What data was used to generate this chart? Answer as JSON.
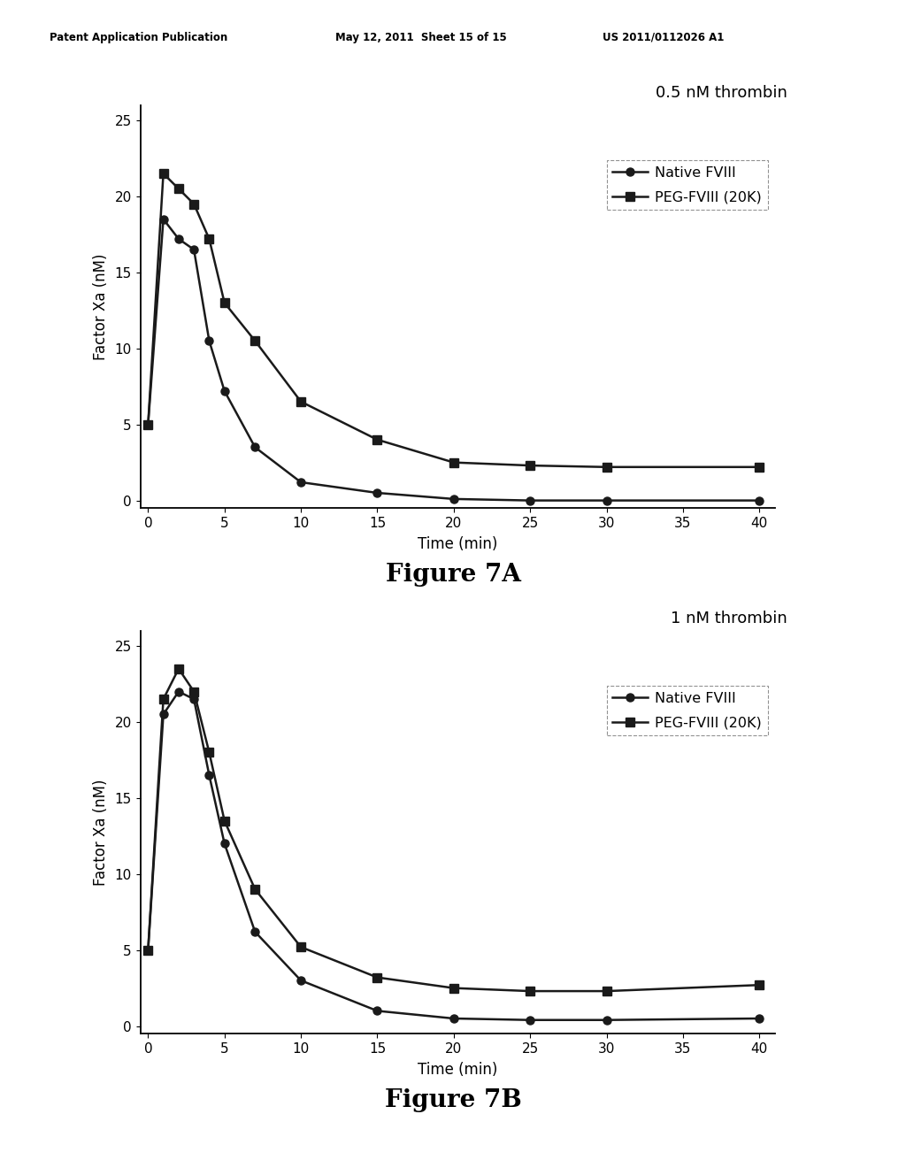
{
  "header_left": "Patent Application Publication",
  "header_mid": "May 12, 2011  Sheet 15 of 15",
  "header_right": "US 2011/0112026 A1",
  "fig7a": {
    "title": "0.5 nM thrombin",
    "xlabel": "Time (min)",
    "ylabel": "Factor Xa (nM)",
    "xlim": [
      -0.5,
      41
    ],
    "ylim": [
      -0.5,
      26
    ],
    "xticks": [
      0,
      5,
      10,
      15,
      20,
      25,
      30,
      35,
      40
    ],
    "yticks": [
      0,
      5,
      10,
      15,
      20,
      25
    ],
    "native_x": [
      0,
      1,
      2,
      3,
      4,
      5,
      7,
      10,
      15,
      20,
      25,
      30,
      40
    ],
    "native_y": [
      5.0,
      18.5,
      17.2,
      16.5,
      10.5,
      7.2,
      3.5,
      1.2,
      0.5,
      0.1,
      0.0,
      0.0,
      0.0
    ],
    "peg_x": [
      0,
      1,
      2,
      3,
      4,
      5,
      7,
      10,
      15,
      20,
      25,
      30,
      40
    ],
    "peg_y": [
      5.0,
      21.5,
      20.5,
      19.5,
      17.2,
      13.0,
      10.5,
      6.5,
      4.0,
      2.5,
      2.3,
      2.2,
      2.2
    ],
    "figure_label": "Figure 7A"
  },
  "fig7b": {
    "title": "1 nM thrombin",
    "xlabel": "Time (min)",
    "ylabel": "Factor Xa (nM)",
    "xlim": [
      -0.5,
      41
    ],
    "ylim": [
      -0.5,
      26
    ],
    "xticks": [
      0,
      5,
      10,
      15,
      20,
      25,
      30,
      35,
      40
    ],
    "yticks": [
      0,
      5,
      10,
      15,
      20,
      25
    ],
    "native_x": [
      0,
      1,
      2,
      3,
      4,
      5,
      7,
      10,
      15,
      20,
      25,
      30,
      40
    ],
    "native_y": [
      5.0,
      20.5,
      22.0,
      21.5,
      16.5,
      12.0,
      6.2,
      3.0,
      1.0,
      0.5,
      0.4,
      0.4,
      0.5
    ],
    "peg_x": [
      0,
      1,
      2,
      3,
      4,
      5,
      7,
      10,
      15,
      20,
      25,
      30,
      40
    ],
    "peg_y": [
      5.0,
      21.5,
      23.5,
      22.0,
      18.0,
      13.5,
      9.0,
      5.2,
      3.2,
      2.5,
      2.3,
      2.3,
      2.7
    ],
    "figure_label": "Figure 7B"
  },
  "line_color": "#1a1a1a",
  "background_color": "#ffffff",
  "legend_native": "Native FVIII",
  "legend_peg": "PEG-FVIII (20K)"
}
